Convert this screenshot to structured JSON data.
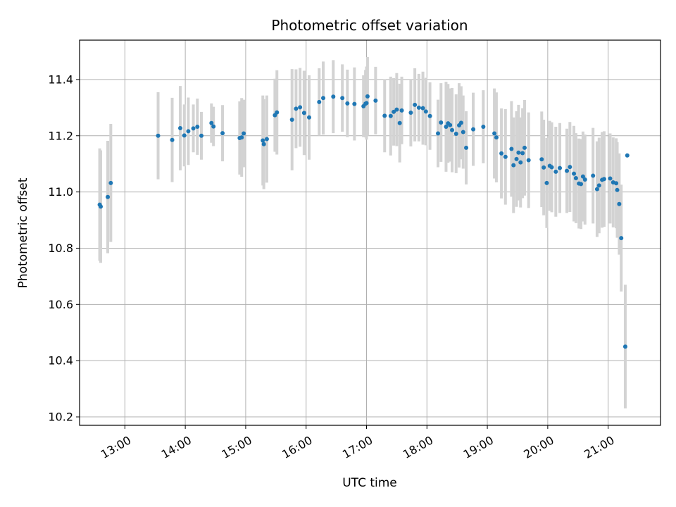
{
  "chart_data": {
    "type": "scatter",
    "title": "Photometric offset variation",
    "xlabel": "UTC time",
    "ylabel": "Photometric offset",
    "xlim": [
      "12:15",
      "21:52"
    ],
    "ylim": [
      10.17,
      11.54
    ],
    "x_ticks": [
      "13:00",
      "14:00",
      "15:00",
      "16:00",
      "17:00",
      "18:00",
      "19:00",
      "20:00",
      "21:00"
    ],
    "y_ticks": [
      10.2,
      10.4,
      10.6,
      10.8,
      11.0,
      11.2,
      11.4
    ],
    "y_tick_labels": [
      "10.2",
      "10.4",
      "10.6",
      "10.8",
      "11.0",
      "11.2",
      "11.4"
    ],
    "grid": true,
    "marker_color": "#1f77b4",
    "errorbar_color": "#d3d3d3",
    "series": [
      {
        "x": [
          "12:35",
          "12:36",
          "12:43",
          "12:46",
          "13:33",
          "13:47",
          "13:55",
          "13:59",
          "14:03",
          "14:08",
          "14:12",
          "14:16",
          "14:26",
          "14:28",
          "14:37",
          "14:54",
          "14:56",
          "14:58",
          "15:17",
          "15:18",
          "15:21",
          "15:29",
          "15:31",
          "15:46",
          "15:50",
          "15:54",
          "15:58",
          "16:03",
          "16:13",
          "16:17",
          "16:27",
          "16:36",
          "16:41",
          "16:48",
          "16:57",
          "16:59",
          "17:00",
          "17:01",
          "17:09",
          "17:18",
          "17:24",
          "17:27",
          "17:30",
          "17:33",
          "17:35",
          "17:44",
          "17:48",
          "17:52",
          "17:56",
          "17:59",
          "18:03",
          "18:11",
          "18:14",
          "18:19",
          "18:21",
          "18:23",
          "18:25",
          "18:29",
          "18:32",
          "18:34",
          "18:36",
          "18:39",
          "18:46",
          "18:56",
          "19:07",
          "19:09",
          "19:14",
          "19:18",
          "19:24",
          "19:26",
          "19:29",
          "19:31",
          "19:33",
          "19:35",
          "19:37",
          "19:41",
          "19:54",
          "19:56",
          "19:59",
          "20:02",
          "20:04",
          "20:08",
          "20:12",
          "20:19",
          "20:22",
          "20:26",
          "20:28",
          "20:31",
          "20:33",
          "20:35",
          "20:37",
          "20:45",
          "20:49",
          "20:51",
          "20:54",
          "20:56",
          "21:02",
          "21:05",
          "21:08",
          "21:09",
          "21:11",
          "21:13",
          "21:17",
          "21:19"
        ],
        "y": [
          10.955,
          10.948,
          10.982,
          11.032,
          11.2,
          11.185,
          11.227,
          11.201,
          11.216,
          11.226,
          11.232,
          11.2,
          11.245,
          11.233,
          11.209,
          11.192,
          11.194,
          11.208,
          11.183,
          11.17,
          11.188,
          11.273,
          11.283,
          11.257,
          11.296,
          11.301,
          11.281,
          11.265,
          11.32,
          11.334,
          11.339,
          11.334,
          11.315,
          11.313,
          11.305,
          11.314,
          11.316,
          11.34,
          11.325,
          11.271,
          11.27,
          11.285,
          11.293,
          11.245,
          11.29,
          11.282,
          11.31,
          11.3,
          11.298,
          11.286,
          11.27,
          11.208,
          11.247,
          11.232,
          11.244,
          11.238,
          11.22,
          11.207,
          11.237,
          11.246,
          11.213,
          11.157,
          11.223,
          11.232,
          11.208,
          11.194,
          11.137,
          11.125,
          11.153,
          11.095,
          11.117,
          11.14,
          11.105,
          11.138,
          11.157,
          11.113,
          11.116,
          11.087,
          11.032,
          11.093,
          11.088,
          11.072,
          11.085,
          11.075,
          11.089,
          11.065,
          11.049,
          11.03,
          11.028,
          11.055,
          11.044,
          11.058,
          11.01,
          11.023,
          11.043,
          11.046,
          11.048,
          11.034,
          11.031,
          11.007,
          10.957,
          10.836,
          10.45,
          11.13
        ],
        "err": [
          0.2,
          0.2,
          0.2,
          0.21,
          0.155,
          0.15,
          0.15,
          0.11,
          0.12,
          0.085,
          0.1,
          0.085,
          0.07,
          0.07,
          0.1,
          0.13,
          0.14,
          0.12,
          0.16,
          0.16,
          0.155,
          0.13,
          0.15,
          0.18,
          0.14,
          0.14,
          0.15,
          0.15,
          0.12,
          0.13,
          0.13,
          0.12,
          0.12,
          0.13,
          0.11,
          0.12,
          0.13,
          0.14,
          0.12,
          0.13,
          0.14,
          0.12,
          0.13,
          0.14,
          0.12,
          0.12,
          0.13,
          0.12,
          0.13,
          0.12,
          0.12,
          0.12,
          0.14,
          0.16,
          0.14,
          0.13,
          0.15,
          0.14,
          0.15,
          0.13,
          0.13,
          0.13,
          0.13,
          0.13,
          0.16,
          0.16,
          0.16,
          0.17,
          0.17,
          0.17,
          0.17,
          0.17,
          0.16,
          0.16,
          0.17,
          0.17,
          0.17,
          0.17,
          0.16,
          0.16,
          0.16,
          0.16,
          0.16,
          0.15,
          0.16,
          0.17,
          0.16,
          0.16,
          0.16,
          0.16,
          0.16,
          0.17,
          0.17,
          0.17,
          0.17,
          0.17,
          0.16,
          0.16,
          0.16,
          0.17,
          0.18,
          0.19,
          0.22,
          0.0
        ]
      }
    ]
  }
}
